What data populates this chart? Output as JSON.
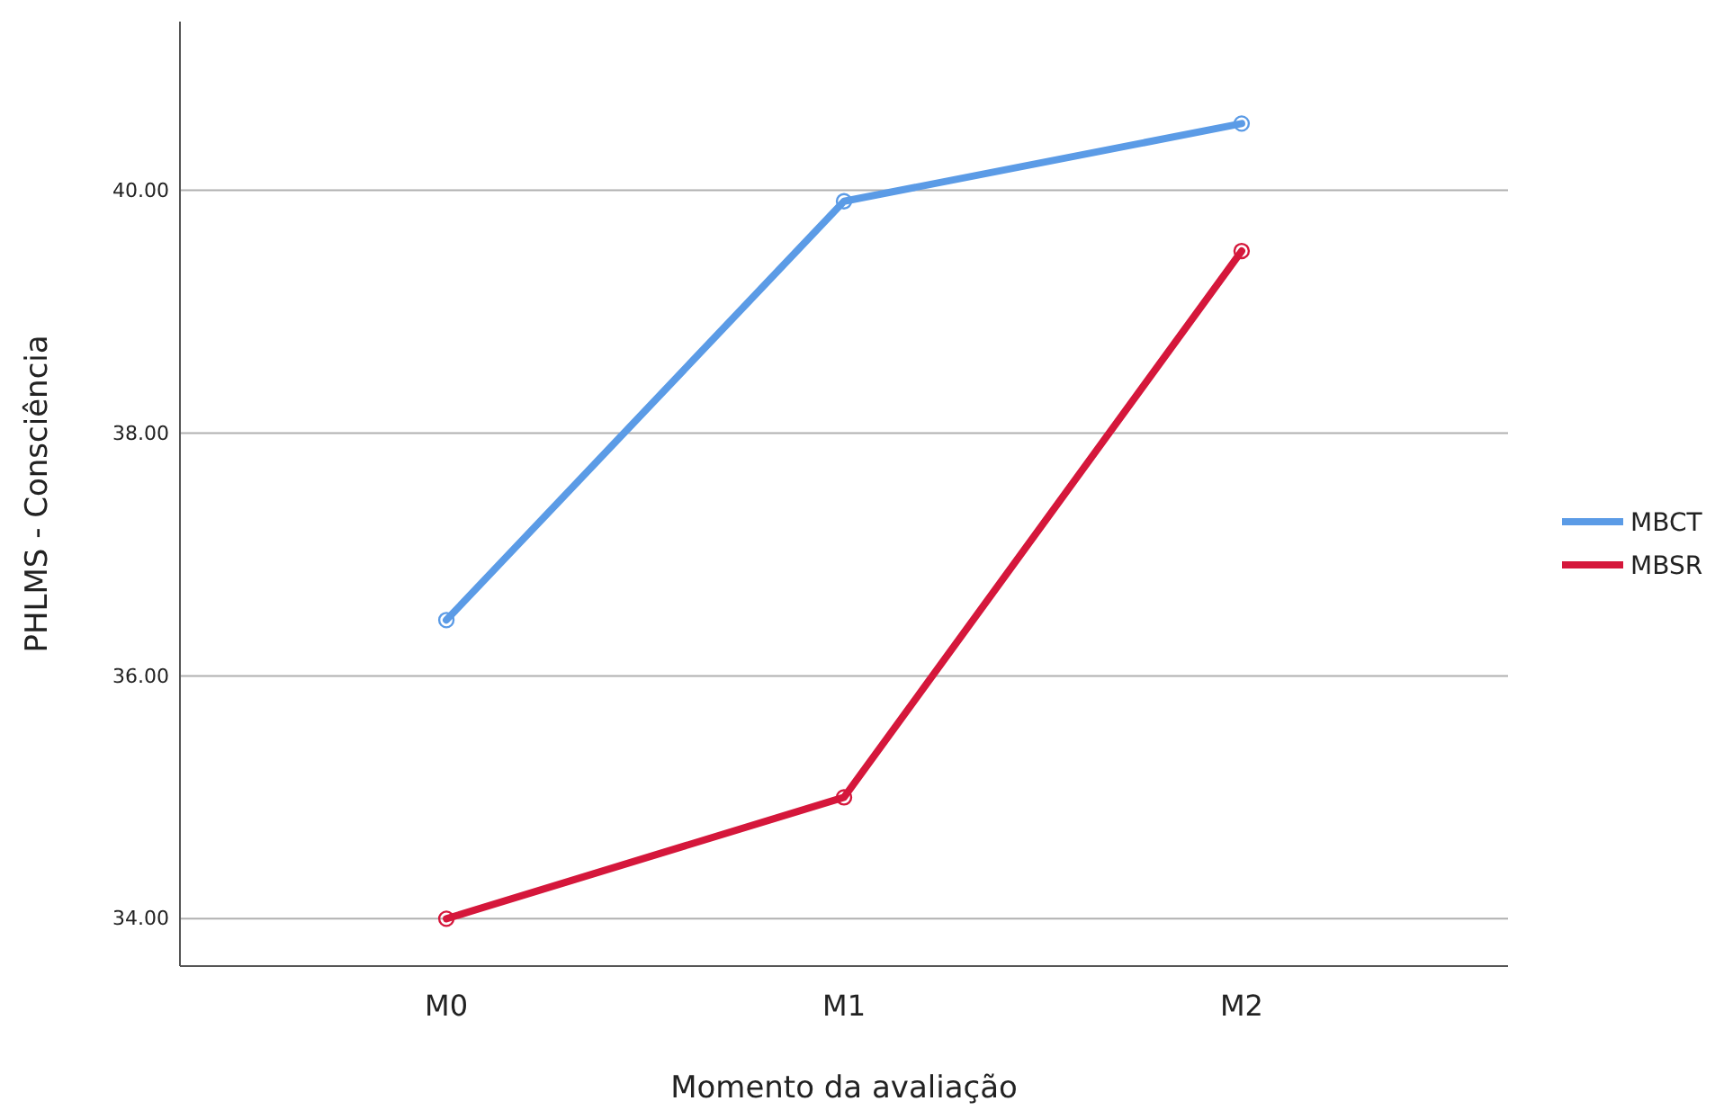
{
  "chart_data": {
    "type": "line",
    "xlabel": "Momento da avaliação",
    "ylabel": "PHLMS - Consciência",
    "categories": [
      "M0",
      "M1",
      "M2"
    ],
    "series": [
      {
        "name": "MBCT",
        "color": "#5b9be6",
        "values": [
          36.46,
          39.91,
          40.55
        ]
      },
      {
        "name": "MBSR",
        "color": "#d5173b",
        "values": [
          34.0,
          35.0,
          39.5
        ]
      }
    ],
    "ylim": [
      33.61,
      41.39
    ],
    "yticks": [
      {
        "value": 34,
        "label": "34.00"
      },
      {
        "value": 36,
        "label": "36.00"
      },
      {
        "value": 38,
        "label": "38.00"
      },
      {
        "value": 40,
        "label": "40.00"
      }
    ],
    "grid": "y",
    "legend": "right",
    "marker": "circle",
    "line_style": "solid"
  }
}
